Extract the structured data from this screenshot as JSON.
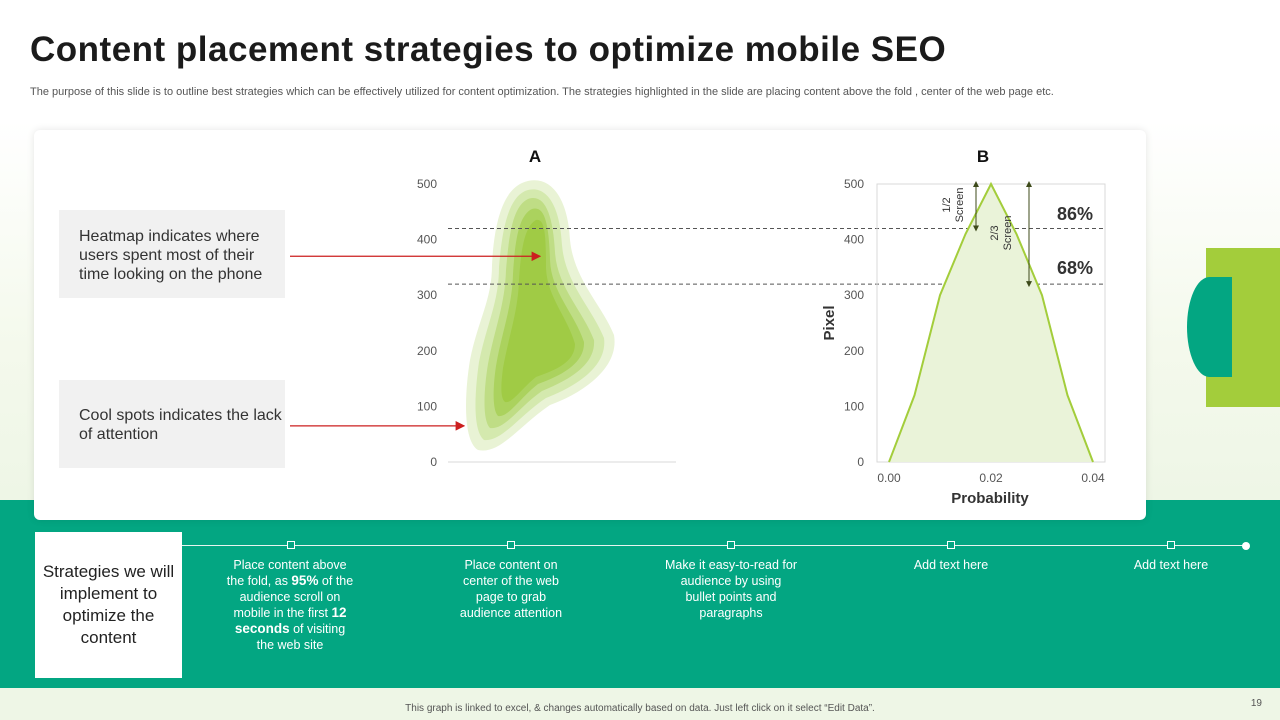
{
  "header": {
    "title": "Content placement strategies to optimize mobile SEO",
    "subtitle": "The purpose of this slide is to outline best strategies which can be effectively utilized for content optimization. The strategies highlighted in the slide are placing content above the fold , center of the web page etc."
  },
  "notes": {
    "heatmap": "Heatmap indicates where users spent most of their time looking on the phone",
    "coolspots": "Cool spots indicates the lack of attention"
  },
  "strategy_box": "Strategies we will implement to optimize the content",
  "timeline": [
    {
      "pre": "Place content above the fold, as ",
      "bold1": "95%",
      "mid": " of the audience scroll on mobile in the first ",
      "bold2": "12 seconds",
      "post": " of visiting the web site"
    },
    {
      "text": "Place content on center of the web page to grab audience attention"
    },
    {
      "text": "Make it easy-to-read for audience by using bullet points and paragraphs"
    },
    {
      "text": "Add text here"
    },
    {
      "text": "Add text here"
    }
  ],
  "footer": "This graph is linked to excel, & changes automatically based on data. Just left click on it select “Edit Data”.",
  "page_number": "19",
  "colors": {
    "accent": "#03a682",
    "lime": "#a3cd3b",
    "arrow": "#cc1f1f"
  },
  "chart_data": [
    {
      "type": "heatmap",
      "title": "A",
      "ylim": [
        0,
        500
      ],
      "yticks": [
        0,
        100,
        200,
        300,
        400,
        500
      ],
      "threshold_lines": [
        420,
        320
      ],
      "hotspot_center_y": 220,
      "annotations": [
        {
          "y": 370,
          "text": "heatmap arrow"
        },
        {
          "y": 65,
          "text": "cool spots arrow"
        }
      ]
    },
    {
      "type": "area",
      "title": "B",
      "xlabel": "Probability",
      "ylabel": "Pixel",
      "xlim": [
        0,
        0.04
      ],
      "ylim": [
        0,
        500
      ],
      "xticks": [
        "0.00",
        "0.02",
        "0.04"
      ],
      "yticks": [
        0,
        100,
        200,
        300,
        400,
        500
      ],
      "x": [
        0.0,
        0.005,
        0.01,
        0.015,
        0.02,
        0.025,
        0.03,
        0.035,
        0.04
      ],
      "y": [
        0,
        120,
        300,
        410,
        500,
        410,
        300,
        120,
        0
      ],
      "threshold_lines": [
        420,
        320
      ],
      "annotations": [
        {
          "label": "1/2 Screen",
          "value": "86%"
        },
        {
          "label": "2/3 Screen",
          "value": "68%"
        }
      ]
    }
  ]
}
